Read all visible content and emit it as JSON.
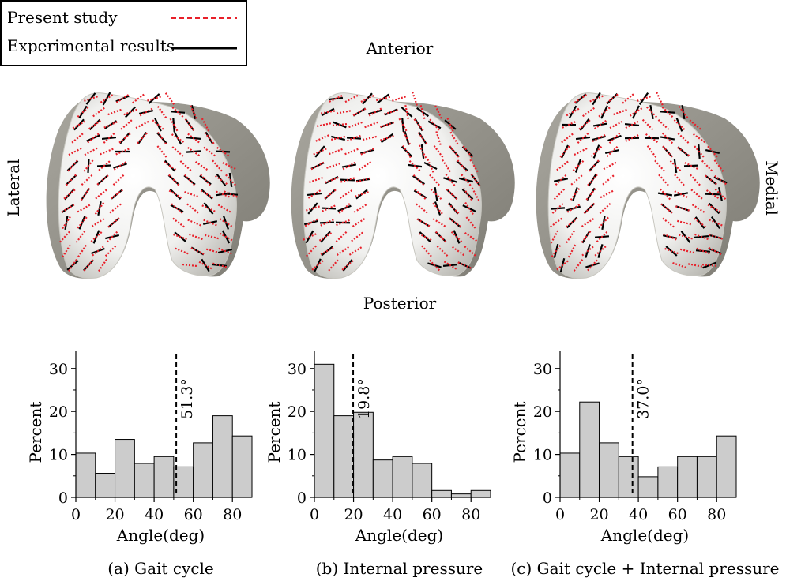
{
  "legend": {
    "entries": [
      {
        "label": "Present study",
        "style": "dashed",
        "color": "#e8202a"
      },
      {
        "label": "Experimental results",
        "style": "solid",
        "color": "#000000"
      }
    ]
  },
  "orientation": {
    "anterior": "Anterior",
    "posterior": "Posterior",
    "lateral": "Lateral",
    "medial": "Medial"
  },
  "colors": {
    "bar_fill": "#cccccc",
    "bar_stroke": "#000000",
    "present_study": "#e8202a",
    "experimental": "#000000",
    "bone_light": "#f2f2f2",
    "bone_dark": "#8f8d85"
  },
  "chart_data": [
    {
      "type": "bar",
      "caption": "(a) Gait cycle",
      "xlabel": "Angle(deg)",
      "ylabel": "Percent",
      "bin_edges": [
        0,
        10,
        20,
        30,
        40,
        50,
        60,
        70,
        80,
        90
      ],
      "values": [
        10.3,
        5.6,
        13.5,
        7.9,
        9.5,
        7.1,
        12.7,
        19.0,
        14.3
      ],
      "xlim": [
        0,
        90
      ],
      "ylim": [
        0,
        34
      ],
      "xticks": [
        0,
        20,
        40,
        60,
        80
      ],
      "yticks": [
        0,
        10,
        20,
        30
      ],
      "mean_line": {
        "value": 51.3,
        "label": "51.3°"
      }
    },
    {
      "type": "bar",
      "caption": "(b) Internal pressure",
      "xlabel": "Angle(deg)",
      "ylabel": "Percent",
      "bin_edges": [
        0,
        10,
        20,
        30,
        40,
        50,
        60,
        70,
        80,
        90
      ],
      "values": [
        31.0,
        19.0,
        19.8,
        8.7,
        9.5,
        7.9,
        1.6,
        0.8,
        1.6
      ],
      "xlim": [
        0,
        90
      ],
      "ylim": [
        0,
        34
      ],
      "xticks": [
        0,
        20,
        40,
        60,
        80
      ],
      "yticks": [
        0,
        10,
        20,
        30
      ],
      "mean_line": {
        "value": 19.8,
        "label": "19.8°"
      }
    },
    {
      "type": "bar",
      "caption": "(c) Gait cycle + Internal pressure",
      "xlabel": "Angle(deg)",
      "ylabel": "Percent",
      "bin_edges": [
        0,
        10,
        20,
        30,
        40,
        50,
        60,
        70,
        80,
        90
      ],
      "values": [
        10.3,
        22.2,
        12.7,
        9.5,
        4.8,
        7.1,
        9.5,
        9.5,
        14.3
      ],
      "xlim": [
        0,
        90
      ],
      "ylim": [
        0,
        34
      ],
      "xticks": [
        0,
        20,
        40,
        60,
        80
      ],
      "yticks": [
        0,
        10,
        20,
        30
      ],
      "mean_line": {
        "value": 37.0,
        "label": "37.0°"
      }
    }
  ]
}
